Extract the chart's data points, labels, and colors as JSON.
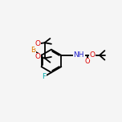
{
  "bg_color": "#f5f5f5",
  "bond_color": "#000000",
  "bond_width": 1.3,
  "atom_colors": {
    "B": "#e07800",
    "O": "#dd0000",
    "F": "#00aaaa",
    "N": "#2222cc",
    "C": "#000000"
  },
  "font_size": 6.5,
  "fig_size": [
    1.52,
    1.52
  ],
  "dpi": 100
}
